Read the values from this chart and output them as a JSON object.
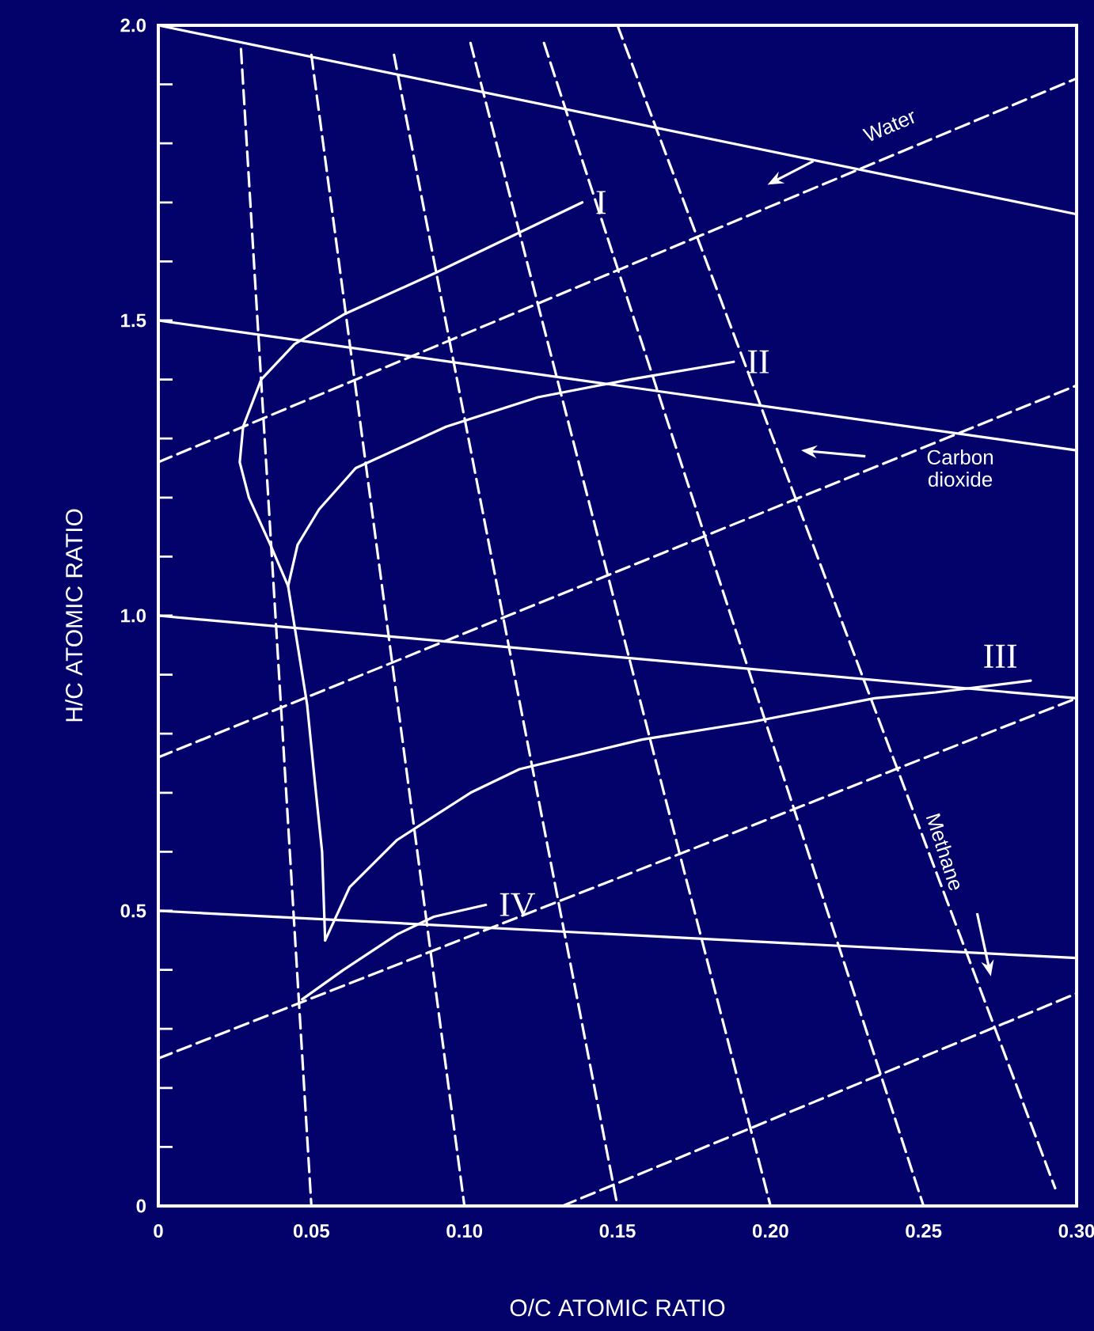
{
  "chart_data": {
    "type": "line",
    "xlabel": "O/C ATOMIC RATIO",
    "ylabel": "H/C ATOMIC RATIO",
    "xlim": [
      0,
      0.3
    ],
    "ylim": [
      0,
      2.0
    ],
    "xticks": [
      0,
      0.05,
      {
        "value": 0.1,
        "label": "0.10"
      },
      0.15,
      {
        "value": 0.2,
        "label": "0.20"
      },
      0.25,
      {
        "value": 0.3,
        "label": "0.30"
      }
    ],
    "yticks": [
      0,
      {
        "value": 0.1,
        "label": null
      },
      {
        "value": 0.2,
        "label": null
      },
      {
        "value": 0.3,
        "label": null
      },
      {
        "value": 0.4,
        "label": null
      },
      0.5,
      {
        "value": 0.6,
        "label": null
      },
      {
        "value": 0.7,
        "label": null
      },
      {
        "value": 0.8,
        "label": null
      },
      {
        "value": 0.9,
        "label": null
      },
      {
        "value": 1.0,
        "label": "1.0"
      },
      {
        "value": 1.1,
        "label": null
      },
      {
        "value": 1.2,
        "label": null
      },
      {
        "value": 1.3,
        "label": null
      },
      {
        "value": 1.4,
        "label": null
      },
      1.5,
      {
        "value": 1.6,
        "label": null
      },
      {
        "value": 1.7,
        "label": null
      },
      {
        "value": 1.8,
        "label": null
      },
      {
        "value": 1.9,
        "label": null
      },
      {
        "value": 2.0,
        "label": "2.0"
      }
    ],
    "series": [
      {
        "name": "I",
        "color": "#ffffff",
        "line_style": "solid",
        "x": [
          0.0545,
          0.0535,
          0.0515,
          0.0486,
          0.0455,
          0.0424,
          0.0366,
          0.0296,
          0.0266,
          0.0277,
          0.0336,
          0.0445,
          0.0605,
          0.0903,
          0.1385
        ],
        "values": [
          0.45,
          0.6,
          0.7,
          0.85,
          0.95,
          1.05,
          1.12,
          1.2,
          1.26,
          1.32,
          1.4,
          1.46,
          1.51,
          1.58,
          1.7
        ]
      },
      {
        "name": "II",
        "color": "#ffffff",
        "line_style": "solid",
        "x": [
          0.0424,
          0.0455,
          0.0525,
          0.0645,
          0.094,
          0.124,
          0.154,
          0.188
        ],
        "values": [
          1.05,
          1.12,
          1.18,
          1.25,
          1.32,
          1.37,
          1.4,
          1.43
        ]
      },
      {
        "name": "III",
        "color": "#ffffff",
        "line_style": "solid",
        "x": [
          0.0545,
          0.0625,
          0.078,
          0.102,
          0.118,
          0.158,
          0.194,
          0.234,
          0.254,
          0.285
        ],
        "values": [
          0.45,
          0.54,
          0.62,
          0.7,
          0.74,
          0.79,
          0.82,
          0.86,
          0.87,
          0.89
        ]
      },
      {
        "name": "IV",
        "color": "#ffffff",
        "line_style": "solid",
        "x": [
          0.047,
          0.0605,
          0.078,
          0.09,
          0.107
        ],
        "values": [
          0.35,
          0.4,
          0.46,
          0.49,
          0.51
        ]
      },
      {
        "color": "#ffffff",
        "line_style": "solid",
        "x": [
          0,
          0.3
        ],
        "values": [
          2.0,
          1.68
        ]
      },
      {
        "color": "#ffffff",
        "line_style": "solid",
        "x": [
          0,
          0.3
        ],
        "values": [
          1.5,
          1.28
        ]
      },
      {
        "color": "#ffffff",
        "line_style": "solid",
        "x": [
          0,
          0.3
        ],
        "values": [
          1.0,
          0.86
        ]
      },
      {
        "color": "#ffffff",
        "line_style": "solid",
        "x": [
          0,
          0.3
        ],
        "values": [
          0.5,
          0.42
        ]
      },
      {
        "color": "#ffffff",
        "line_style": "dashed",
        "x": [
          0,
          0.3
        ],
        "values": [
          1.26,
          1.91
        ]
      },
      {
        "color": "#ffffff",
        "line_style": "dashed",
        "x": [
          0,
          0.3
        ],
        "values": [
          0.76,
          1.39
        ]
      },
      {
        "color": "#ffffff",
        "line_style": "dashed",
        "x": [
          0,
          0.3
        ],
        "values": [
          0.25,
          0.86
        ]
      },
      {
        "color": "#ffffff",
        "line_style": "dashed",
        "x": [
          0.132,
          0.3
        ],
        "values": [
          0,
          0.36
        ]
      },
      {
        "color": "#ffffff",
        "line_style": "dashed",
        "x": [
          0.027,
          0.05
        ],
        "values": [
          1.96,
          0
        ]
      },
      {
        "color": "#ffffff",
        "line_style": "dashed",
        "x": [
          0.05,
          0.1
        ],
        "values": [
          1.95,
          0
        ]
      },
      {
        "color": "#ffffff",
        "line_style": "dashed",
        "x": [
          0.077,
          0.15
        ],
        "values": [
          1.95,
          0
        ]
      },
      {
        "color": "#ffffff",
        "line_style": "dashed",
        "x": [
          0.102,
          0.2
        ],
        "values": [
          1.97,
          0
        ]
      },
      {
        "color": "#ffffff",
        "line_style": "dashed",
        "x": [
          0.126,
          0.25
        ],
        "values": [
          1.97,
          0
        ]
      },
      {
        "color": "#ffffff",
        "line_style": "dashed",
        "x": [
          0.15,
          0.293
        ],
        "values": [
          2.0,
          0.03
        ]
      }
    ],
    "annotations": [
      "Water",
      "Carbon dioxide",
      "Methane"
    ]
  }
}
